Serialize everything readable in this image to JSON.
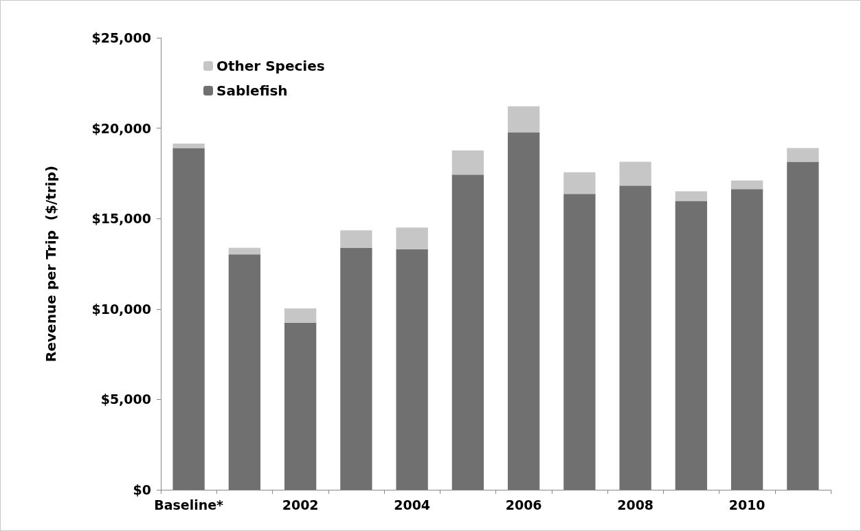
{
  "chart_data": {
    "type": "bar",
    "stacked": true,
    "ylabel": "Revenue per Trip  ($/trip)",
    "categories": [
      "Baseline*",
      null,
      "2002",
      null,
      "2004",
      null,
      "2006",
      null,
      "2008",
      null,
      "2010",
      null
    ],
    "series": [
      {
        "name": "Sablefish",
        "color": "#707070",
        "values": [
          18900,
          13020,
          9240,
          13370,
          13310,
          17430,
          19780,
          16370,
          16820,
          15980,
          16630,
          18140
        ]
      },
      {
        "name": "Other Species",
        "color": "#c6c6c6",
        "values": [
          250,
          360,
          790,
          980,
          1190,
          1340,
          1430,
          1190,
          1320,
          530,
          480,
          760
        ]
      }
    ],
    "ylim": [
      0,
      25000
    ],
    "yticks": [
      {
        "value": 0,
        "label": "$0"
      },
      {
        "value": 5000,
        "label": "$5,000"
      },
      {
        "value": 10000,
        "label": "$10,000"
      },
      {
        "value": 15000,
        "label": "$15,000"
      },
      {
        "value": 20000,
        "label": "$20,000"
      },
      {
        "value": 25000,
        "label": "$25,000"
      }
    ],
    "grid": false,
    "legend": "top left"
  }
}
